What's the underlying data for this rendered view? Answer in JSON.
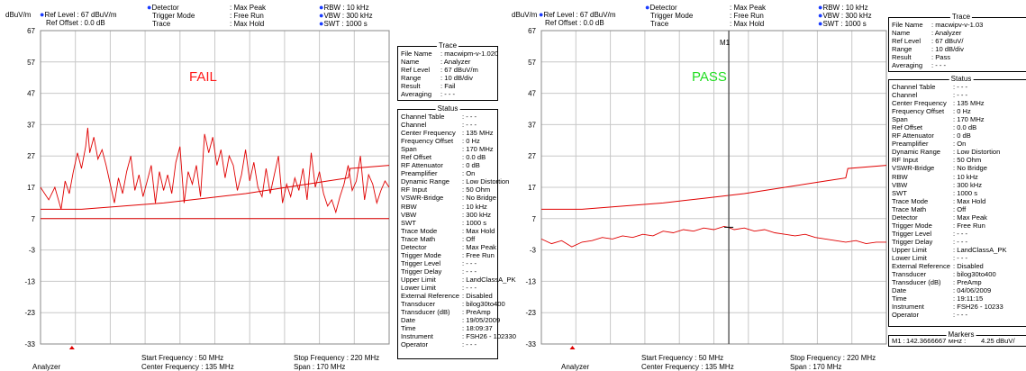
{
  "left": {
    "header": {
      "unit": "dBuV/m",
      "ref_level": "Ref Level : 67   dBuV/m",
      "ref_offset": "Ref Offset :  0.0 dB",
      "detector": "Detector",
      "detector_val": ": Max Peak",
      "trigger_mode": "Trigger Mode",
      "trigger_mode_val": ": Free Run",
      "trace": "Trace",
      "trace_val": ": Max Hold",
      "rbw": "RBW :   10 kHz",
      "vbw": "VBW :  300 kHz",
      "swt": "SWT : 1000 s"
    },
    "verdict": "FAIL",
    "verdict_color": "#ff1a1a",
    "footer": {
      "mode": "Analyzer",
      "start": "Start Frequency   :  50 MHz",
      "center": "Center Frequency : 135 MHz",
      "stop": "Stop Frequency : 220 MHz",
      "span": "Span                  : 170 MHz"
    }
  },
  "right": {
    "header": {
      "unit": "dBuV/m",
      "ref_level": "Ref Level : 67   dBuV/m",
      "ref_offset": "Ref Offset :  0.0 dB",
      "detector": "Detector",
      "detector_val": ": Max Peak",
      "trigger_mode": "Trigger Mode",
      "trigger_mode_val": ": Free Run",
      "trace": "Trace",
      "trace_val": ": Max Hold",
      "rbw": "RBW :   10 kHz",
      "vbw": "VBW :  300 kHz",
      "swt": "SWT : 1000 s"
    },
    "verdict": "PASS",
    "verdict_color": "#22dd22",
    "marker_label": "M1",
    "footer": {
      "mode": "Analyzer",
      "start": "Start Frequency   :  50 MHz",
      "center": "Center Frequency : 135 MHz",
      "stop": "Stop Frequency : 220 MHz",
      "span": "Span                  : 170 MHz"
    }
  },
  "left_panel": {
    "trace_title": "Trace",
    "trace_rows": [
      [
        "File Name",
        ": macwipm-v-1.020"
      ],
      [
        "Name",
        ": Analyzer"
      ],
      [
        "Ref Level",
        ":    67   dBuV/m"
      ],
      [
        "Range",
        ": 10 dB/div"
      ],
      [
        "Result",
        ": Fail"
      ],
      [
        "Averaging",
        ": - - -"
      ]
    ],
    "status_title": "Status",
    "status_rows": [
      [
        "Channel Table",
        ": - - -"
      ],
      [
        "Channel",
        ": - - -"
      ],
      [
        "Center Frequency",
        ":   135   MHz"
      ],
      [
        "Frequency Offset",
        ":      0   Hz"
      ],
      [
        "Span",
        ":   170   MHz"
      ],
      [
        "Ref Offset",
        ":        0.0 dB"
      ],
      [
        "RF Attenuator",
        ":       0   dB"
      ],
      [
        "Preamplifier",
        ": On"
      ],
      [
        "Dynamic Range",
        ": Low Distortion"
      ],
      [
        "RF Input",
        ":     50   Ohm"
      ],
      [
        "VSWR-Bridge",
        ": No Bridge"
      ],
      [
        "RBW",
        ":     10   kHz"
      ],
      [
        "VBW",
        ":   300   kHz"
      ],
      [
        "SWT",
        ":  1000   s"
      ],
      [
        "Trace Mode",
        ": Max Hold"
      ],
      [
        "Trace Math",
        ": Off"
      ],
      [
        "Detector",
        ": Max Peak"
      ],
      [
        "Trigger Mode",
        ": Free Run"
      ],
      [
        "Trigger Level",
        ": - - -"
      ],
      [
        "Trigger Delay",
        ": - - -"
      ],
      [
        "Upper Limit",
        ": LandClassA_PK"
      ],
      [
        "Lower Limit",
        ": - - -"
      ],
      [
        "External Reference",
        ": Disabled"
      ],
      [
        "Transducer",
        ": bilog30to400"
      ],
      [
        "Transducer (dB)",
        ": PreAmp"
      ],
      [
        "Date",
        ": 19/05/2009"
      ],
      [
        "Time",
        ": 18:09:37"
      ],
      [
        "Instrument",
        ": FSH26 - 102330"
      ],
      [
        "Operator",
        ": - - -"
      ]
    ]
  },
  "right_panel": {
    "trace_title": "Trace",
    "trace_rows": [
      [
        "File Name",
        ": macwipv-v-1.03"
      ],
      [
        "Name",
        ": Analyzer"
      ],
      [
        "Ref Level",
        ":    67   dBuV/"
      ],
      [
        "Range",
        ": 10 dB/div"
      ],
      [
        "Result",
        ": Pass"
      ],
      [
        "Averaging",
        ": - - -"
      ]
    ],
    "status_title": "Status",
    "status_rows": [
      [
        "Channel Table",
        ": - - -"
      ],
      [
        "Channel",
        ": - - -"
      ],
      [
        "Center Frequency",
        ":   135   MHz"
      ],
      [
        "Frequency Offset",
        ":      0   Hz"
      ],
      [
        "Span",
        ":   170   MHz"
      ],
      [
        "Ref Offset",
        ":      0.0  dB"
      ],
      [
        "RF Attenuator",
        ":      0   dB"
      ],
      [
        "Preamplifier",
        ": On"
      ],
      [
        "Dynamic Range",
        ": Low Distortion"
      ],
      [
        "RF Input",
        ":    50   Ohm"
      ],
      [
        "VSWR-Bridge",
        ": No Bridge"
      ],
      [
        "RBW",
        ":    10   kHz"
      ],
      [
        "VBW",
        ":   300   kHz"
      ],
      [
        "SWT",
        ":  1000   s"
      ],
      [
        "Trace Mode",
        ": Max Hold"
      ],
      [
        "Trace Math",
        ": Off"
      ],
      [
        "Detector",
        ": Max Peak"
      ],
      [
        "Trigger Mode",
        ": Free Run"
      ],
      [
        "Trigger Level",
        ": - - -"
      ],
      [
        "Trigger Delay",
        ": - - -"
      ],
      [
        "Upper Limit",
        ": LandClassA_PK"
      ],
      [
        "Lower Limit",
        ": - - -"
      ],
      [
        "External Reference",
        ": Disabled"
      ],
      [
        "Transducer",
        ": bilog30to400"
      ],
      [
        "Transducer (dB)",
        ": PreAmp"
      ],
      [
        "Date",
        ": 04/06/2009"
      ],
      [
        "Time",
        ": 19:11:15"
      ],
      [
        "Instrument",
        ": FSH26 - 10233"
      ],
      [
        "Operator",
        ": - - -"
      ]
    ],
    "markers_title": "Markers",
    "marker_row": [
      "M1 :",
      "142.3666667 MHz :",
      "4.25 dBuV/"
    ]
  },
  "chart_data": [
    {
      "type": "line",
      "title": "FAIL",
      "ylabel": "dBuV/m",
      "yticks": [
        67,
        57,
        47,
        37,
        27,
        17,
        7,
        -3,
        -13,
        -23,
        -33
      ],
      "ylim": [
        -33,
        67
      ],
      "xlim": [
        50,
        220
      ],
      "x_unit": "MHz",
      "grid": true,
      "series": [
        {
          "color": "#e00000",
          "x": [
            50,
            54,
            57,
            60,
            62,
            64,
            66,
            68,
            70,
            72,
            73,
            74,
            76,
            78,
            80,
            82,
            84,
            86,
            88,
            90,
            92,
            94,
            96,
            98,
            100,
            102,
            104,
            106,
            108,
            110,
            112,
            114,
            116,
            118,
            120,
            122,
            124,
            126,
            128,
            130,
            132,
            134,
            136,
            138,
            140,
            142,
            144,
            146,
            148,
            150,
            152,
            154,
            156,
            158,
            160,
            162,
            164,
            166,
            168,
            170,
            172,
            174,
            176,
            178,
            180,
            182,
            184,
            186,
            188,
            190,
            192,
            194,
            196,
            198,
            200,
            202,
            204,
            206,
            208,
            210,
            212,
            214,
            216,
            218,
            220
          ],
          "values": [
            17,
            13,
            17,
            10,
            19,
            15,
            22,
            28,
            23,
            30,
            36,
            28,
            33,
            26,
            29,
            24,
            18,
            12,
            20,
            15,
            22,
            27,
            16,
            21,
            14,
            19,
            24,
            12,
            22,
            16,
            21,
            15,
            25,
            30,
            12,
            22,
            18,
            24,
            14,
            34,
            28,
            33,
            24,
            29,
            20,
            27,
            24,
            16,
            21,
            29,
            19,
            25,
            17,
            14,
            23,
            15,
            21,
            27,
            12,
            18,
            14,
            20,
            16,
            23,
            13,
            28,
            17,
            22,
            15,
            11,
            13,
            9,
            14,
            18,
            24,
            16,
            19,
            27,
            13,
            21,
            18,
            12,
            16,
            19,
            17
          ]
        },
        {
          "color": "#e00000",
          "x": [
            50,
            70,
            90,
            110,
            130,
            150,
            170,
            190,
            200,
            201,
            220
          ],
          "values": [
            10,
            10,
            11,
            12,
            13.5,
            15,
            17,
            19,
            20,
            23,
            24
          ]
        },
        {
          "color": "#e00000",
          "x": [
            50,
            220
          ],
          "values": [
            7,
            7
          ]
        }
      ]
    },
    {
      "type": "line",
      "title": "PASS",
      "ylabel": "dBuV/m",
      "yticks": [
        67,
        57,
        47,
        37,
        27,
        17,
        7,
        -3,
        -13,
        -23,
        -33
      ],
      "ylim": [
        -33,
        67
      ],
      "xlim": [
        50,
        220
      ],
      "x_unit": "MHz",
      "grid": true,
      "series": [
        {
          "color": "#e00000",
          "x": [
            50,
            55,
            60,
            65,
            70,
            75,
            80,
            85,
            90,
            95,
            100,
            105,
            110,
            115,
            120,
            125,
            130,
            135,
            140,
            142,
            145,
            150,
            155,
            160,
            165,
            170,
            175,
            180,
            185,
            190,
            195,
            200,
            205,
            210,
            215,
            220
          ],
          "values": [
            0.5,
            -1,
            0,
            -2,
            -0.5,
            0,
            1,
            0.5,
            1.5,
            1,
            2,
            1.5,
            3,
            2.5,
            3.5,
            3,
            4,
            3.5,
            4.5,
            4.25,
            3.5,
            4,
            3,
            3.5,
            2.5,
            2,
            1.5,
            2,
            1,
            0.5,
            0,
            -0.5,
            0,
            -1,
            -0.5,
            -0.5
          ]
        },
        {
          "color": "#e00000",
          "x": [
            50,
            70,
            90,
            110,
            130,
            150,
            170,
            190,
            200,
            201,
            220
          ],
          "values": [
            10,
            10,
            11,
            12,
            13.5,
            15,
            17,
            19,
            20,
            23,
            24
          ]
        }
      ],
      "marker": {
        "label": "M1",
        "x": 142.3666667,
        "y": 4.25
      }
    }
  ]
}
